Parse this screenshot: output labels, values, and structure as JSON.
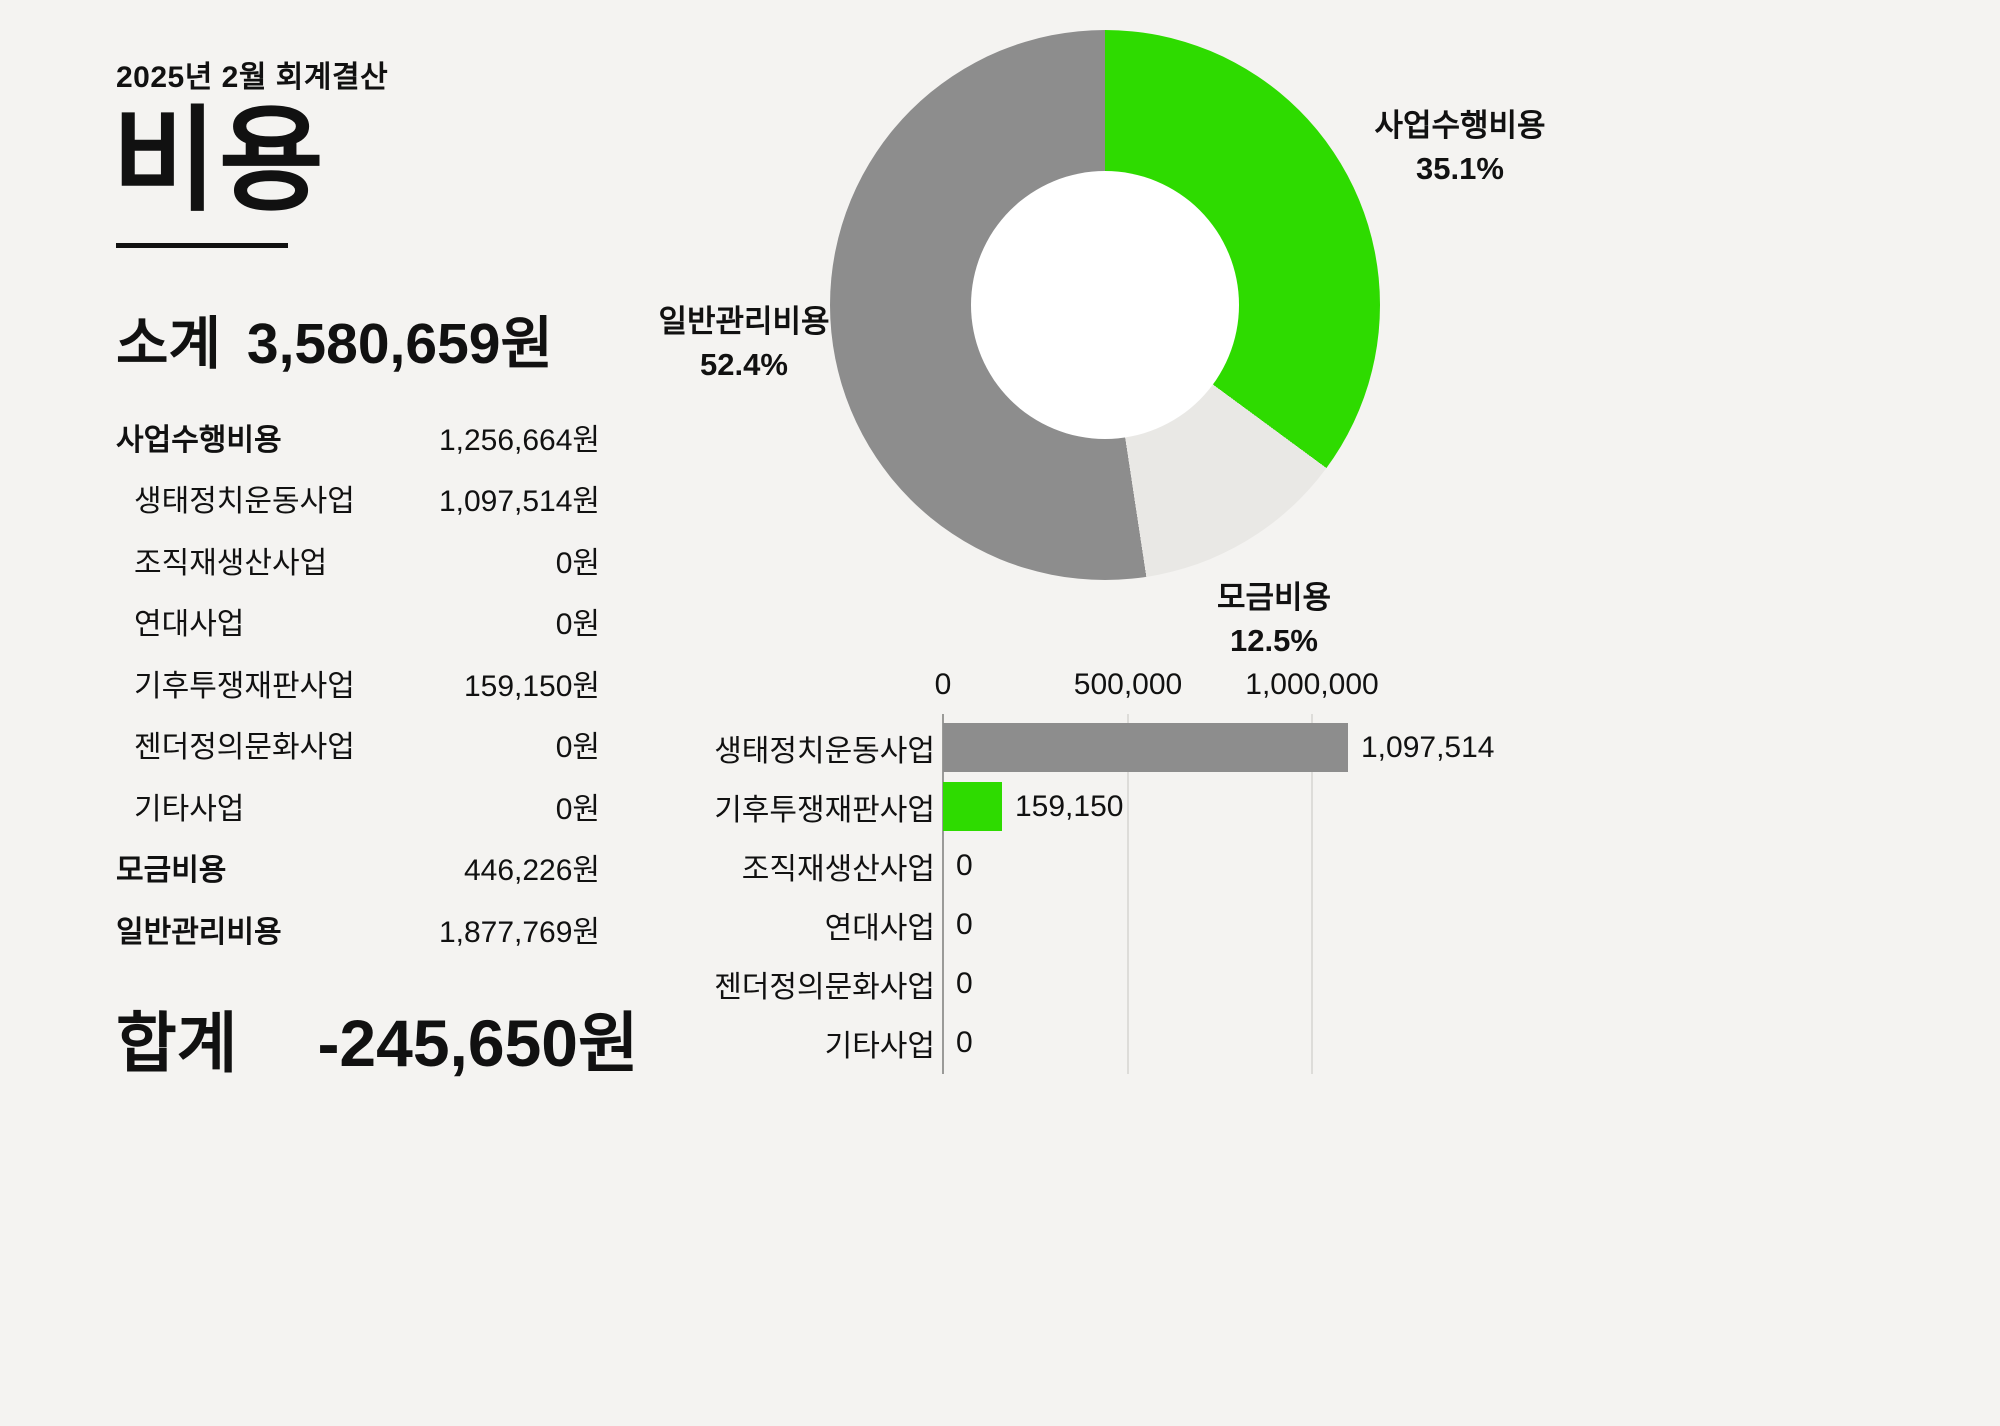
{
  "header": {
    "eyebrow": "2025년 2월 회계결산",
    "title": "비용"
  },
  "subtotal": {
    "label": "소계",
    "value": "3,580,659원"
  },
  "expense_items": [
    {
      "label": "사업수행비용",
      "value": "1,256,664원",
      "style": "category"
    },
    {
      "label": "생태정치운동사업",
      "value": "1,097,514원",
      "style": "sub"
    },
    {
      "label": "조직재생산사업",
      "value": "0원",
      "style": "sub"
    },
    {
      "label": "연대사업",
      "value": "0원",
      "style": "sub"
    },
    {
      "label": "기후투쟁재판사업",
      "value": "159,150원",
      "style": "sub"
    },
    {
      "label": "젠더정의문화사업",
      "value": "0원",
      "style": "sub"
    },
    {
      "label": "기타사업",
      "value": "0원",
      "style": "sub"
    },
    {
      "label": "모금비용",
      "value": "446,226원",
      "style": "category"
    },
    {
      "label": "일반관리비용",
      "value": "1,877,769원",
      "style": "category"
    }
  ],
  "total": {
    "label": "합계",
    "value": "-245,650원"
  },
  "colors": {
    "green": "#2edb00",
    "gray": "#8d8d8d",
    "light_gray": "#e9e8e5",
    "background": "#f4f3f1",
    "text": "#111111"
  },
  "chart_data": [
    {
      "type": "pie",
      "subtype": "donut",
      "start_angle": "top",
      "direction": "clockwise",
      "slices": [
        {
          "label": "사업수행비용",
          "pct": 35.1,
          "pct_label": "35.1%",
          "amount": 1256664,
          "color": "#2edb00"
        },
        {
          "label": "모금비용",
          "pct": 12.5,
          "pct_label": "12.5%",
          "amount": 446226,
          "color": "#e9e8e5"
        },
        {
          "label": "일반관리비용",
          "pct": 52.4,
          "pct_label": "52.4%",
          "amount": 1877769,
          "color": "#8d8d8d"
        }
      ]
    },
    {
      "type": "bar",
      "orientation": "horizontal",
      "grid": true,
      "x_range": [
        0,
        1120000
      ],
      "x_ticks": [
        {
          "label": "0",
          "value": 0
        },
        {
          "label": "500,000",
          "value": 500000
        },
        {
          "label": "1,000,000",
          "value": 1000000
        }
      ],
      "rows": [
        {
          "label": "생태정치운동사업",
          "value": 1097514,
          "value_label": "1,097,514",
          "color": "#8d8d8d"
        },
        {
          "label": "기후투쟁재판사업",
          "value": 159150,
          "value_label": "159,150",
          "color": "#2edb00"
        },
        {
          "label": "조직재생산사업",
          "value": 0,
          "value_label": "0",
          "color": "none"
        },
        {
          "label": "연대사업",
          "value": 0,
          "value_label": "0",
          "color": "none"
        },
        {
          "label": "젠더정의문화사업",
          "value": 0,
          "value_label": "0",
          "color": "none"
        },
        {
          "label": "기타사업",
          "value": 0,
          "value_label": "0",
          "color": "none"
        }
      ]
    }
  ]
}
